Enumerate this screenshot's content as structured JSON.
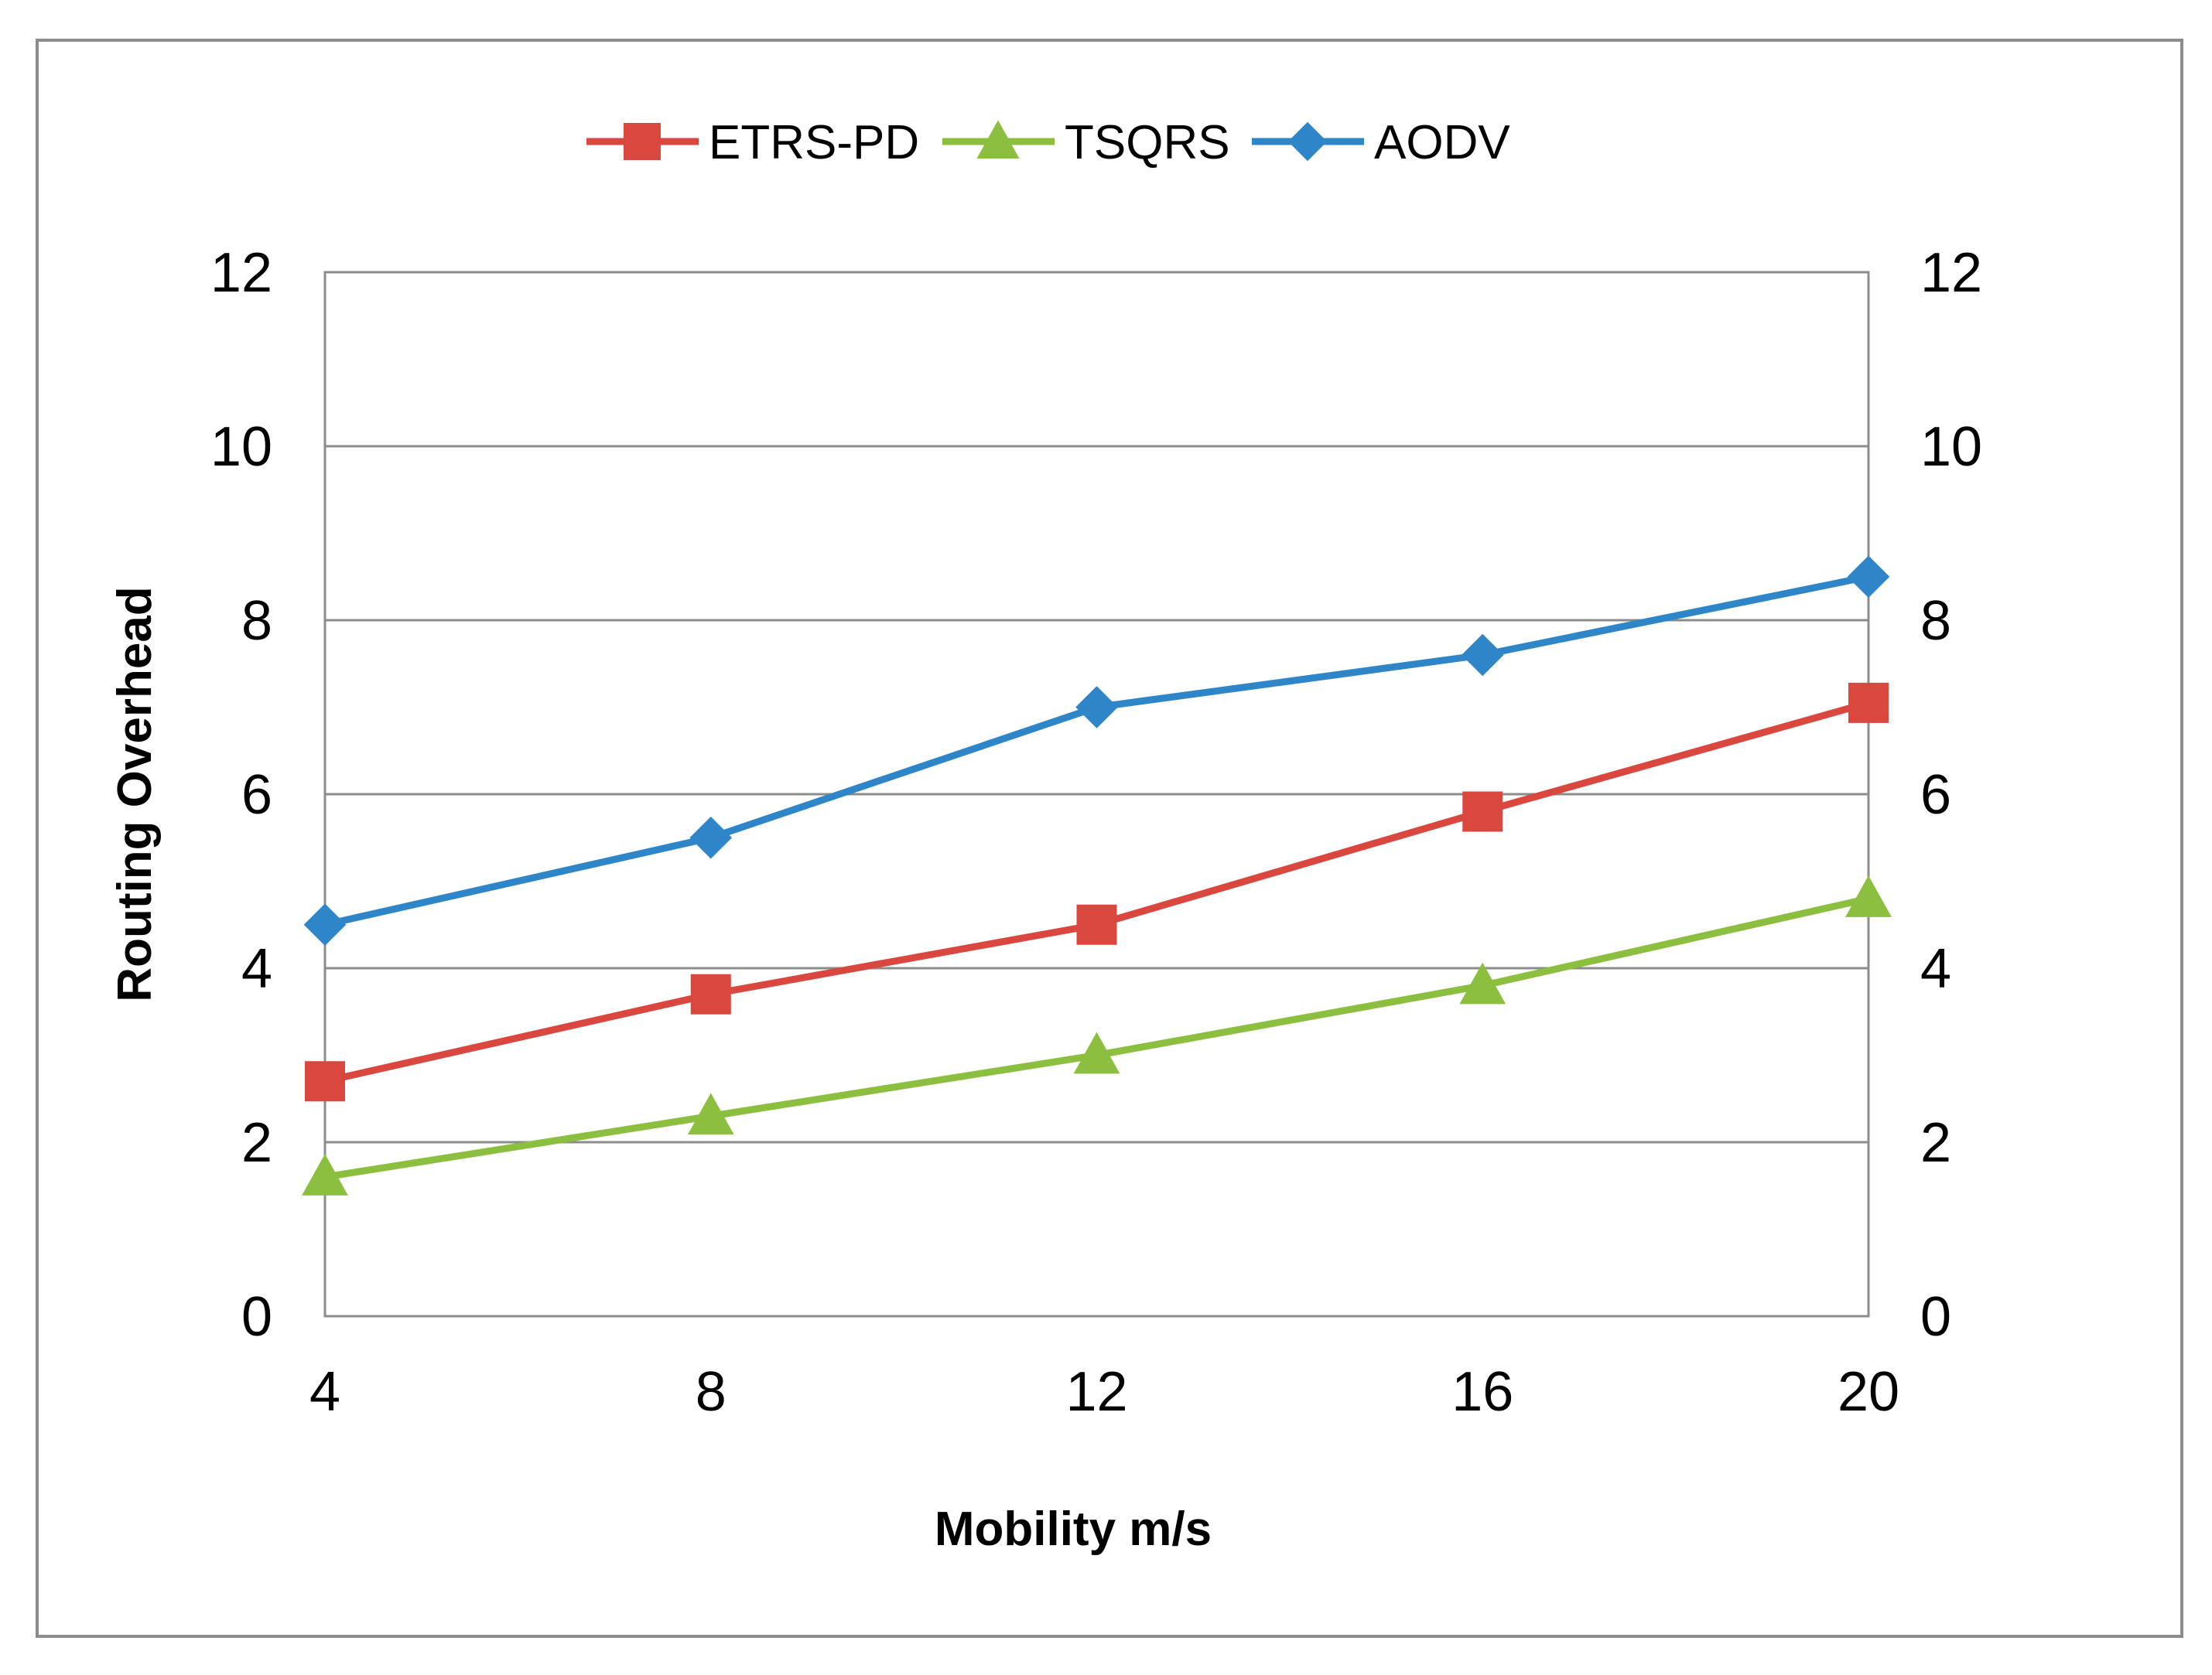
{
  "chart_data": {
    "type": "line",
    "title": "",
    "xlabel": "Mobility m/s",
    "ylabel": "Routing Overhead",
    "x": [
      4,
      8,
      12,
      16,
      20
    ],
    "x_tick_labels": [
      "4",
      "8",
      "12",
      "16",
      "20"
    ],
    "ylim": [
      0,
      12
    ],
    "y_tick_labels": [
      "0",
      "2",
      "4",
      "6",
      "8",
      "10",
      "12"
    ],
    "secondary_y_tick_labels": [
      "0",
      "2",
      "4",
      "6",
      "8",
      "10",
      "12"
    ],
    "grid": true,
    "legend_position": "top",
    "series": [
      {
        "name": "ETRS-PD",
        "color": "#d9473f",
        "marker": "square",
        "values": [
          2.7,
          3.7,
          4.5,
          5.8,
          7.05
        ]
      },
      {
        "name": "TSQRS",
        "color": "#8cbf3f",
        "marker": "triangle",
        "values": [
          1.6,
          2.3,
          3.0,
          3.8,
          4.8
        ]
      },
      {
        "name": "AODV",
        "color": "#2e86c8",
        "marker": "diamond",
        "values": [
          4.5,
          5.5,
          7.0,
          7.6,
          8.5
        ]
      }
    ]
  }
}
